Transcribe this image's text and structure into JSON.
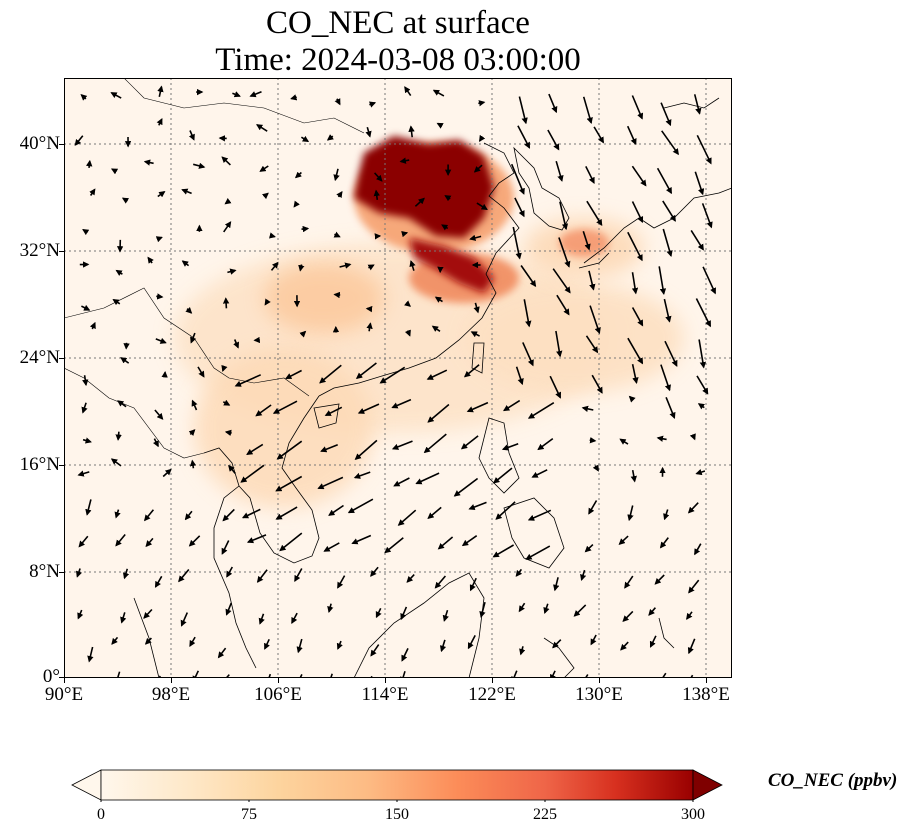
{
  "title": {
    "line1": "CO_NEC at surface",
    "line2": "Time: 2024-03-08 03:00:00"
  },
  "map": {
    "projection": "PlateCarree",
    "lon_range": [
      90,
      140
    ],
    "lat_range": [
      0,
      45
    ],
    "gridlines": "dotted",
    "lat_ticks": [
      {
        "value": 40,
        "label": "40°N"
      },
      {
        "value": 32,
        "label": "32°N"
      },
      {
        "value": 24,
        "label": "24°N"
      },
      {
        "value": 16,
        "label": "16°N"
      },
      {
        "value": 8,
        "label": "8°N"
      },
      {
        "value": 0,
        "label": "0°"
      }
    ],
    "lon_ticks": [
      {
        "value": 90,
        "label": "90°E"
      },
      {
        "value": 98,
        "label": "98°E"
      },
      {
        "value": 106,
        "label": "106°E"
      },
      {
        "value": 114,
        "label": "114°E"
      },
      {
        "value": 122,
        "label": "122°E"
      },
      {
        "value": 130,
        "label": "130°E"
      },
      {
        "value": 138,
        "label": "138°E"
      }
    ],
    "field": "CO_NEC concentration with wind vectors",
    "hotspot_region": "North China Plain / Bohai",
    "colors": {
      "background": "#fff5eb",
      "max": "#7f0000",
      "land_outline": "#000000"
    }
  },
  "colorbar": {
    "label": "CO_NEC (ppbv)",
    "min": 0,
    "max": 300,
    "ticks": [
      "0",
      "75",
      "150",
      "225",
      "300"
    ],
    "colormap": "OrRd",
    "extend": "both"
  }
}
